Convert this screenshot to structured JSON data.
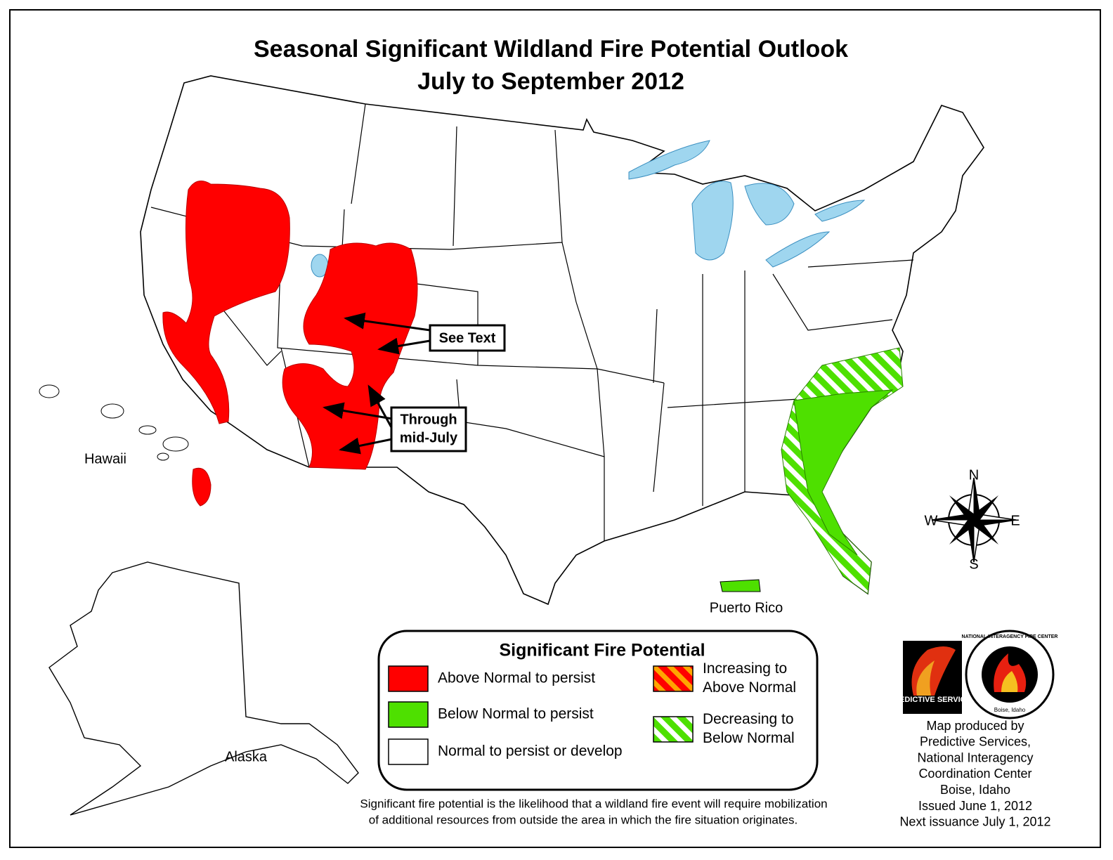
{
  "header": {
    "title_lines": [
      "Seasonal Significant Wildland Fire Potential Outlook",
      "July to September 2012"
    ]
  },
  "map_labels": {
    "hawaii": "Hawaii",
    "alaska": "Alaska",
    "puerto_rico": "Puerto Rico"
  },
  "callouts": [
    {
      "lines": [
        "See Text"
      ]
    },
    {
      "lines": [
        "Through",
        "mid-July"
      ]
    }
  ],
  "compass": {
    "north": "N",
    "east": "E",
    "south": "S",
    "west": "W"
  },
  "legend": {
    "title": "Significant Fire Potential",
    "items": [
      {
        "lines": [
          "Above Normal to persist"
        ],
        "color": "#ff0000"
      },
      {
        "lines": [
          "Below Normal to persist"
        ],
        "color": "#4ee000"
      },
      {
        "lines": [
          "Normal to persist or develop"
        ],
        "color": "#ffffff"
      },
      {
        "lines": [
          "Increasing to",
          "Above Normal"
        ],
        "color": "#ff0000",
        "stripe_color": "#ffa500"
      },
      {
        "lines": [
          "Decreasing to",
          "Below Normal"
        ],
        "color": "#4ee000",
        "stripe_color": "#ffffff"
      }
    ]
  },
  "footnote": {
    "lines": [
      "Significant fire potential is the likelihood that a wildland fire event will require mobilization",
      "of additional resources from outside the area in which the fire situation originates."
    ]
  },
  "logos": {
    "predictive": "PREDICTIVE SERVICES",
    "nifc": "NATIONAL INTERAGENCY FIRE CENTER",
    "nifc_city": "Boise, Idaho"
  },
  "credits": {
    "lines": [
      "Map produced by",
      "Predictive Services,",
      "National Interagency",
      "Coordination Center",
      "Boise, Idaho",
      "Issued June 1, 2012",
      "Next issuance July 1, 2012"
    ]
  }
}
